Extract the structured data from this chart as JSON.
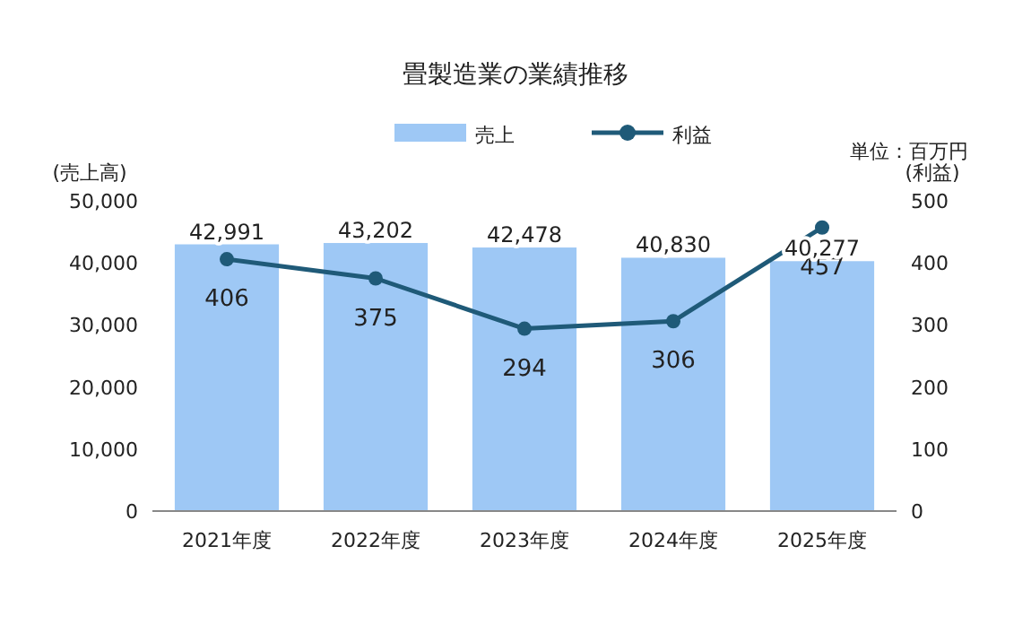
{
  "chart_data": {
    "type": "bar",
    "title": "畳製造業の業績推移",
    "ylabel": "(売上高)",
    "y2label": "(利益)",
    "annotations": [
      "単位：百万円"
    ],
    "categories": [
      "2021年度",
      "2022年度",
      "2023年度",
      "2024年度",
      "2025年度"
    ],
    "series": [
      {
        "name": "売上",
        "color": "#9ec8f5",
        "values": [
          42991,
          43202,
          42478,
          40830,
          40277
        ],
        "value_labels": [
          "42,991",
          "43,202",
          "42,478",
          "40,830",
          "40,277"
        ]
      },
      {
        "name": "利益",
        "type": "line",
        "axis": "y2",
        "color": "#1f5a78",
        "marker": "circle",
        "values": [
          406,
          375,
          294,
          306,
          457
        ]
      }
    ],
    "ylim": [
      0,
      50000
    ],
    "yticks": [
      {
        "value": 0,
        "label": "0"
      },
      {
        "value": 10000,
        "label": "10,000"
      },
      {
        "value": 20000,
        "label": "20,000"
      },
      {
        "value": 30000,
        "label": "30,000"
      },
      {
        "value": 40000,
        "label": "40,000"
      },
      {
        "value": 50000,
        "label": "50,000"
      }
    ],
    "y2lim": [
      0,
      500
    ],
    "y2ticks": [
      0,
      100,
      200,
      300,
      400,
      500
    ],
    "data_labels": true,
    "legend": "top",
    "grid": false
  }
}
